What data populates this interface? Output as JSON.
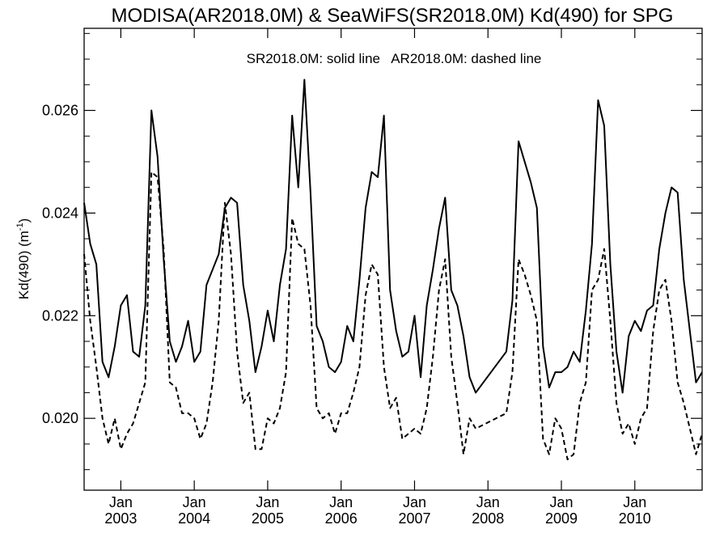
{
  "chart_data": {
    "type": "line",
    "title": "MODISA(AR2018.0M) & SeaWiFS(SR2018.0M)  Kd(490) for SPG",
    "annotation": "SR2018.0M: solid line   AR2018.0M: dashed line",
    "ylabel": "Kd(490) (m",
    "ylabel_sup": "-1",
    "ylabel_end": ")",
    "ylim": [
      0.0186,
      0.0276
    ],
    "xlim": [
      "2002-07",
      "2010-12"
    ],
    "yticks": [
      {
        "value": 0.02,
        "label": "0.020"
      },
      {
        "value": 0.022,
        "label": "0.022"
      },
      {
        "value": 0.024,
        "label": "0.024"
      },
      {
        "value": 0.026,
        "label": "0.026"
      }
    ],
    "xticks": [
      {
        "date": "2003-01",
        "month": "Jan",
        "year": "2003"
      },
      {
        "date": "2004-01",
        "month": "Jan",
        "year": "2004"
      },
      {
        "date": "2005-01",
        "month": "Jan",
        "year": "2005"
      },
      {
        "date": "2006-01",
        "month": "Jan",
        "year": "2006"
      },
      {
        "date": "2007-01",
        "month": "Jan",
        "year": "2007"
      },
      {
        "date": "2008-01",
        "month": "Jan",
        "year": "2008"
      },
      {
        "date": "2009-01",
        "month": "Jan",
        "year": "2009"
      },
      {
        "date": "2010-01",
        "month": "Jan",
        "year": "2010"
      }
    ],
    "series": [
      {
        "name": "SR2018.0M",
        "style": "solid",
        "points": [
          [
            "2002-07",
            0.0242
          ],
          [
            "2002-08",
            0.0234
          ],
          [
            "2002-09",
            0.023
          ],
          [
            "2002-10",
            0.0211
          ],
          [
            "2002-11",
            0.0208
          ],
          [
            "2002-12",
            0.0214
          ],
          [
            "2003-01",
            0.0222
          ],
          [
            "2003-02",
            0.0224
          ],
          [
            "2003-03",
            0.0213
          ],
          [
            "2003-04",
            0.0212
          ],
          [
            "2003-05",
            0.0222
          ],
          [
            "2003-06",
            0.026
          ],
          [
            "2003-07",
            0.0251
          ],
          [
            "2003-08",
            0.0231
          ],
          [
            "2003-09",
            0.0215
          ],
          [
            "2003-10",
            0.0211
          ],
          [
            "2003-11",
            0.0214
          ],
          [
            "2003-12",
            0.0219
          ],
          [
            "2004-01",
            0.0211
          ],
          [
            "2004-02",
            0.0213
          ],
          [
            "2004-03",
            0.0226
          ],
          [
            "2004-04",
            0.0229
          ],
          [
            "2004-05",
            0.0232
          ],
          [
            "2004-06",
            0.0241
          ],
          [
            "2004-07",
            0.0243
          ],
          [
            "2004-08",
            0.0242
          ],
          [
            "2004-09",
            0.0226
          ],
          [
            "2004-10",
            0.0219
          ],
          [
            "2004-11",
            0.0209
          ],
          [
            "2004-12",
            0.0214
          ],
          [
            "2005-01",
            0.0221
          ],
          [
            "2005-02",
            0.0215
          ],
          [
            "2005-03",
            0.0226
          ],
          [
            "2005-04",
            0.0233
          ],
          [
            "2005-05",
            0.0259
          ],
          [
            "2005-06",
            0.0245
          ],
          [
            "2005-07",
            0.0266
          ],
          [
            "2005-08",
            0.0244
          ],
          [
            "2005-09",
            0.0218
          ],
          [
            "2005-10",
            0.0215
          ],
          [
            "2005-11",
            0.021
          ],
          [
            "2005-12",
            0.0209
          ],
          [
            "2006-01",
            0.0211
          ],
          [
            "2006-02",
            0.0218
          ],
          [
            "2006-03",
            0.0215
          ],
          [
            "2006-04",
            0.0227
          ],
          [
            "2006-05",
            0.0241
          ],
          [
            "2006-06",
            0.0248
          ],
          [
            "2006-07",
            0.0247
          ],
          [
            "2006-08",
            0.0259
          ],
          [
            "2006-09",
            0.0225
          ],
          [
            "2006-10",
            0.0217
          ],
          [
            "2006-11",
            0.0212
          ],
          [
            "2006-12",
            0.0213
          ],
          [
            "2007-01",
            0.022
          ],
          [
            "2007-02",
            0.0208
          ],
          [
            "2007-03",
            0.0222
          ],
          [
            "2007-04",
            0.0229
          ],
          [
            "2007-05",
            0.0237
          ],
          [
            "2007-06",
            0.0243
          ],
          [
            "2007-07",
            0.0225
          ],
          [
            "2007-08",
            0.0222
          ],
          [
            "2007-09",
            0.0216
          ],
          [
            "2007-10",
            0.0208
          ],
          [
            "2007-11",
            0.0205
          ],
          [
            "2008-04",
            0.0213
          ],
          [
            "2008-05",
            0.0223
          ],
          [
            "2008-06",
            0.0254
          ],
          [
            "2008-07",
            0.025
          ],
          [
            "2008-08",
            0.0246
          ],
          [
            "2008-09",
            0.0241
          ],
          [
            "2008-10",
            0.0214
          ],
          [
            "2008-11",
            0.0206
          ],
          [
            "2008-12",
            0.0209
          ],
          [
            "2009-01",
            0.0209
          ],
          [
            "2009-02",
            0.021
          ],
          [
            "2009-03",
            0.0213
          ],
          [
            "2009-04",
            0.0211
          ],
          [
            "2009-05",
            0.0221
          ],
          [
            "2009-06",
            0.0234
          ],
          [
            "2009-07",
            0.0262
          ],
          [
            "2009-08",
            0.0257
          ],
          [
            "2009-09",
            0.023
          ],
          [
            "2009-10",
            0.0213
          ],
          [
            "2009-11",
            0.0205
          ],
          [
            "2009-12",
            0.0216
          ],
          [
            "2010-01",
            0.0219
          ],
          [
            "2010-02",
            0.0217
          ],
          [
            "2010-03",
            0.0221
          ],
          [
            "2010-04",
            0.0222
          ],
          [
            "2010-05",
            0.0233
          ],
          [
            "2010-06",
            0.024
          ],
          [
            "2010-07",
            0.0245
          ],
          [
            "2010-08",
            0.0244
          ],
          [
            "2010-09",
            0.0227
          ],
          [
            "2010-10",
            0.0217
          ],
          [
            "2010-11",
            0.0207
          ],
          [
            "2010-12",
            0.0209
          ]
        ]
      },
      {
        "name": "AR2018.0M",
        "style": "dashed",
        "points": [
          [
            "2002-07",
            0.0232
          ],
          [
            "2002-08",
            0.0219
          ],
          [
            "2002-09",
            0.021
          ],
          [
            "2002-10",
            0.02
          ],
          [
            "2002-11",
            0.0195
          ],
          [
            "2002-12",
            0.02
          ],
          [
            "2003-01",
            0.0194
          ],
          [
            "2003-02",
            0.0197
          ],
          [
            "2003-03",
            0.0199
          ],
          [
            "2003-04",
            0.0203
          ],
          [
            "2003-05",
            0.0207
          ],
          [
            "2003-06",
            0.0248
          ],
          [
            "2003-07",
            0.0247
          ],
          [
            "2003-08",
            0.0233
          ],
          [
            "2003-09",
            0.0207
          ],
          [
            "2003-10",
            0.0206
          ],
          [
            "2003-11",
            0.0201
          ],
          [
            "2003-12",
            0.0201
          ],
          [
            "2004-01",
            0.02
          ],
          [
            "2004-02",
            0.0196
          ],
          [
            "2004-03",
            0.0199
          ],
          [
            "2004-04",
            0.0207
          ],
          [
            "2004-05",
            0.0219
          ],
          [
            "2004-06",
            0.0242
          ],
          [
            "2004-07",
            0.0232
          ],
          [
            "2004-08",
            0.0213
          ],
          [
            "2004-09",
            0.0203
          ],
          [
            "2004-10",
            0.0205
          ],
          [
            "2004-11",
            0.0194
          ],
          [
            "2004-12",
            0.0194
          ],
          [
            "2005-01",
            0.02
          ],
          [
            "2005-02",
            0.0199
          ],
          [
            "2005-03",
            0.0202
          ],
          [
            "2005-04",
            0.0209
          ],
          [
            "2005-05",
            0.0239
          ],
          [
            "2005-06",
            0.0234
          ],
          [
            "2005-07",
            0.0233
          ],
          [
            "2005-08",
            0.0222
          ],
          [
            "2005-09",
            0.0202
          ],
          [
            "2005-10",
            0.02
          ],
          [
            "2005-11",
            0.0201
          ],
          [
            "2005-12",
            0.0197
          ],
          [
            "2006-01",
            0.0201
          ],
          [
            "2006-02",
            0.0201
          ],
          [
            "2006-03",
            0.0205
          ],
          [
            "2006-04",
            0.021
          ],
          [
            "2006-05",
            0.0224
          ],
          [
            "2006-06",
            0.023
          ],
          [
            "2006-07",
            0.0228
          ],
          [
            "2006-08",
            0.021
          ],
          [
            "2006-09",
            0.0202
          ],
          [
            "2006-10",
            0.0204
          ],
          [
            "2006-11",
            0.0196
          ],
          [
            "2006-12",
            0.0197
          ],
          [
            "2007-01",
            0.0198
          ],
          [
            "2007-02",
            0.0197
          ],
          [
            "2007-03",
            0.0202
          ],
          [
            "2007-04",
            0.0212
          ],
          [
            "2007-05",
            0.0225
          ],
          [
            "2007-06",
            0.0231
          ],
          [
            "2007-07",
            0.0212
          ],
          [
            "2007-08",
            0.0203
          ],
          [
            "2007-09",
            0.0193
          ],
          [
            "2007-10",
            0.02
          ],
          [
            "2007-11",
            0.0198
          ],
          [
            "2008-04",
            0.0201
          ],
          [
            "2008-05",
            0.0209
          ],
          [
            "2008-06",
            0.0231
          ],
          [
            "2008-07",
            0.0228
          ],
          [
            "2008-08",
            0.0224
          ],
          [
            "2008-09",
            0.0219
          ],
          [
            "2008-10",
            0.0196
          ],
          [
            "2008-11",
            0.0193
          ],
          [
            "2008-12",
            0.02
          ],
          [
            "2009-01",
            0.0198
          ],
          [
            "2009-02",
            0.0192
          ],
          [
            "2009-03",
            0.0193
          ],
          [
            "2009-04",
            0.0203
          ],
          [
            "2009-05",
            0.0207
          ],
          [
            "2009-06",
            0.0225
          ],
          [
            "2009-07",
            0.0227
          ],
          [
            "2009-08",
            0.0233
          ],
          [
            "2009-09",
            0.0219
          ],
          [
            "2009-10",
            0.0203
          ],
          [
            "2009-11",
            0.0197
          ],
          [
            "2009-12",
            0.0199
          ],
          [
            "2010-01",
            0.0195
          ],
          [
            "2010-02",
            0.02
          ],
          [
            "2010-03",
            0.0202
          ],
          [
            "2010-04",
            0.0217
          ],
          [
            "2010-05",
            0.0225
          ],
          [
            "2010-06",
            0.0227
          ],
          [
            "2010-07",
            0.0219
          ],
          [
            "2010-08",
            0.0207
          ],
          [
            "2010-09",
            0.0203
          ],
          [
            "2010-10",
            0.0198
          ],
          [
            "2010-11",
            0.0193
          ],
          [
            "2010-12",
            0.0197
          ]
        ]
      }
    ]
  }
}
